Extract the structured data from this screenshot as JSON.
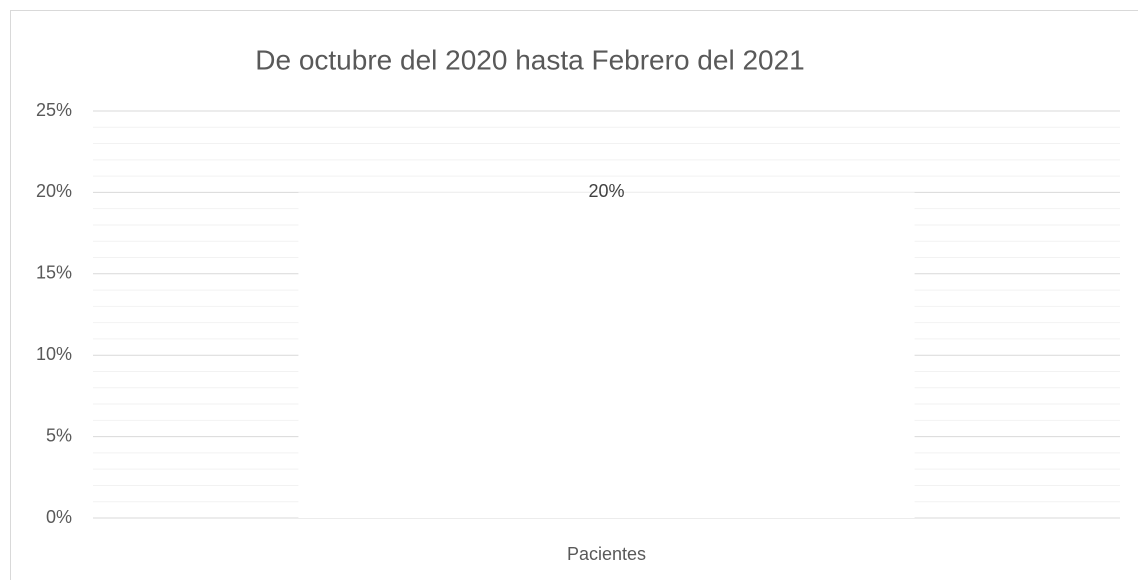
{
  "chart_data": {
    "type": "bar",
    "title": "De octubre del 2020 hasta Febrero del 2021",
    "categories": [
      "Pacientes"
    ],
    "values": [
      20
    ],
    "value_labels": [
      "20%"
    ],
    "color": "#ffffff",
    "ylim": [
      0,
      25
    ],
    "yticks": [
      {
        "value": 0,
        "label": "0%"
      },
      {
        "value": 5,
        "label": "5%"
      },
      {
        "value": 10,
        "label": "10%"
      },
      {
        "value": 15,
        "label": "15%"
      },
      {
        "value": 20,
        "label": "20%"
      },
      {
        "value": 25,
        "label": "25%"
      }
    ],
    "minor_yticks": [
      1,
      2,
      3,
      4,
      6,
      7,
      8,
      9,
      11,
      12,
      13,
      14,
      16,
      17,
      18,
      19,
      21,
      22,
      23,
      24
    ],
    "grid": true
  }
}
